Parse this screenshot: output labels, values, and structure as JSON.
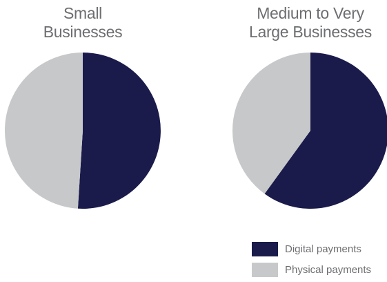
{
  "chart_data": {
    "type": "pie",
    "charts": [
      {
        "title": "Small\nBusinesses",
        "slices": [
          {
            "name": "Digital payments",
            "value": 51
          },
          {
            "name": "Physical payments",
            "value": 49
          }
        ]
      },
      {
        "title": "Medium to Very\nLarge Businesses",
        "slices": [
          {
            "name": "Digital payments",
            "value": 60
          },
          {
            "name": "Physical payments",
            "value": 40
          }
        ]
      }
    ],
    "legend": {
      "position": "bottom-right",
      "items": [
        {
          "label": "Digital payments",
          "color": "#1a1b4b"
        },
        {
          "label": "Physical payments",
          "color": "#c7c8ca"
        }
      ]
    },
    "colors": {
      "digital": "#1a1b4b",
      "physical": "#c7c8ca"
    }
  }
}
